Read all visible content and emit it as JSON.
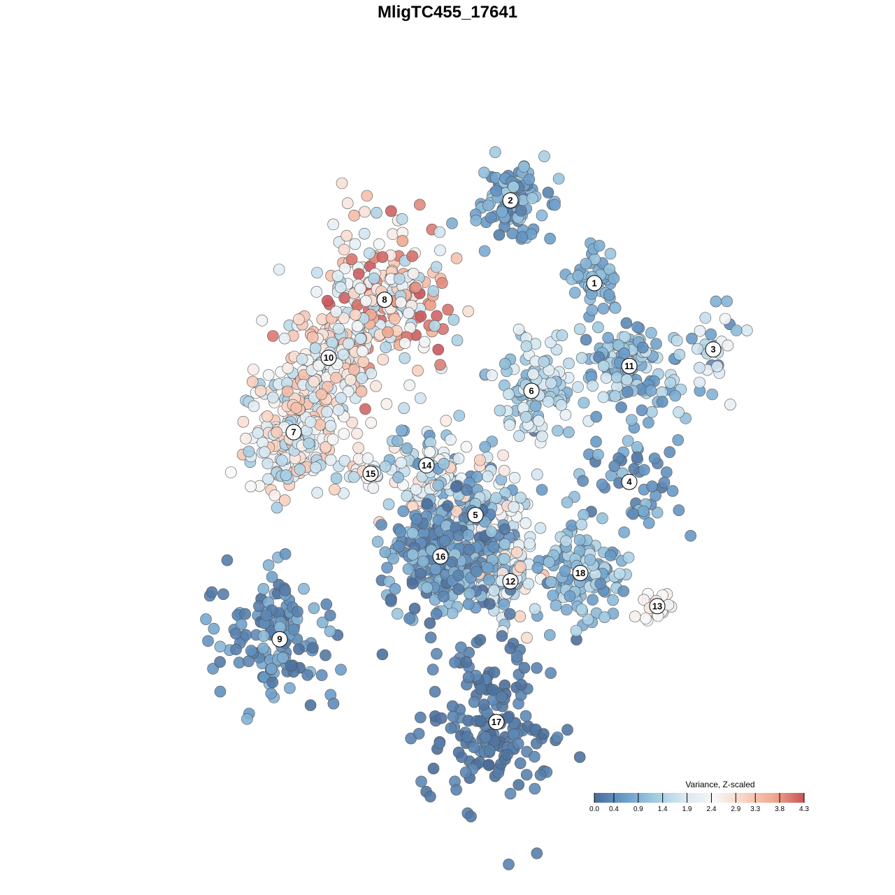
{
  "chart_data": {
    "type": "scatter",
    "title": "MligTC455_17641",
    "clusters": [
      {
        "id": "1",
        "x": 0.69,
        "y": 0.71,
        "spread": 0.025,
        "count": 45,
        "levels": [
          0.6,
          1.2
        ]
      },
      {
        "id": "2",
        "x": 0.57,
        "y": 0.81,
        "spread": 0.03,
        "count": 110,
        "levels": [
          0.2,
          1.4
        ]
      },
      {
        "id": "3",
        "x": 0.86,
        "y": 0.63,
        "spread": 0.03,
        "count": 28,
        "levels": [
          0.3,
          2.4
        ]
      },
      {
        "id": "4",
        "x": 0.74,
        "y": 0.47,
        "spread": 0.05,
        "count": 55,
        "levels": [
          0.1,
          1.2
        ]
      },
      {
        "id": "5",
        "x": 0.52,
        "y": 0.43,
        "spread": 0.05,
        "count": 160,
        "levels": [
          0.3,
          3.0
        ]
      },
      {
        "id": "6",
        "x": 0.6,
        "y": 0.58,
        "spread": 0.04,
        "count": 110,
        "levels": [
          0.8,
          2.2
        ]
      },
      {
        "id": "7",
        "x": 0.26,
        "y": 0.53,
        "spread": 0.05,
        "count": 210,
        "levels": [
          1.2,
          3.3
        ]
      },
      {
        "id": "8",
        "x": 0.39,
        "y": 0.69,
        "spread": 0.06,
        "count": 220,
        "levels": [
          1.3,
          4.3
        ]
      },
      {
        "id": "9",
        "x": 0.24,
        "y": 0.28,
        "spread": 0.05,
        "count": 140,
        "levels": [
          0.0,
          1.0
        ]
      },
      {
        "id": "10",
        "x": 0.31,
        "y": 0.62,
        "spread": 0.04,
        "count": 120,
        "levels": [
          1.5,
          3.5
        ]
      },
      {
        "id": "11",
        "x": 0.74,
        "y": 0.61,
        "spread": 0.04,
        "count": 120,
        "levels": [
          0.3,
          1.8
        ]
      },
      {
        "id": "12",
        "x": 0.57,
        "y": 0.35,
        "spread": 0.03,
        "count": 70,
        "levels": [
          0.5,
          3.5
        ]
      },
      {
        "id": "13",
        "x": 0.78,
        "y": 0.32,
        "spread": 0.015,
        "count": 20,
        "levels": [
          2.2,
          2.8
        ]
      },
      {
        "id": "14",
        "x": 0.45,
        "y": 0.49,
        "spread": 0.04,
        "count": 70,
        "levels": [
          0.5,
          3.2
        ]
      },
      {
        "id": "15",
        "x": 0.37,
        "y": 0.48,
        "spread": 0.02,
        "count": 20,
        "levels": [
          1.3,
          3.0
        ]
      },
      {
        "id": "16",
        "x": 0.47,
        "y": 0.38,
        "spread": 0.05,
        "count": 220,
        "levels": [
          0.0,
          1.2
        ]
      },
      {
        "id": "17",
        "x": 0.55,
        "y": 0.18,
        "spread": 0.06,
        "count": 170,
        "levels": [
          0.0,
          0.4
        ]
      },
      {
        "id": "18",
        "x": 0.67,
        "y": 0.36,
        "spread": 0.04,
        "count": 110,
        "levels": [
          0.4,
          1.7
        ]
      }
    ],
    "colorbar": {
      "title": "Variance, Z-scaled",
      "ticks": [
        "0.0",
        "0.4",
        "0.9",
        "1.4",
        "1.9",
        "2.4",
        "2.9",
        "3.3",
        "3.8",
        "4.3"
      ],
      "min": 0.0,
      "max": 4.3,
      "colors": [
        "#4b6d9a",
        "#6a9cc9",
        "#9fcae1",
        "#d7e8f2",
        "#f7f7f7",
        "#f9d3c2",
        "#f0a78f",
        "#c9535a"
      ]
    },
    "grid": false,
    "legend_placement": "bottom-right"
  }
}
